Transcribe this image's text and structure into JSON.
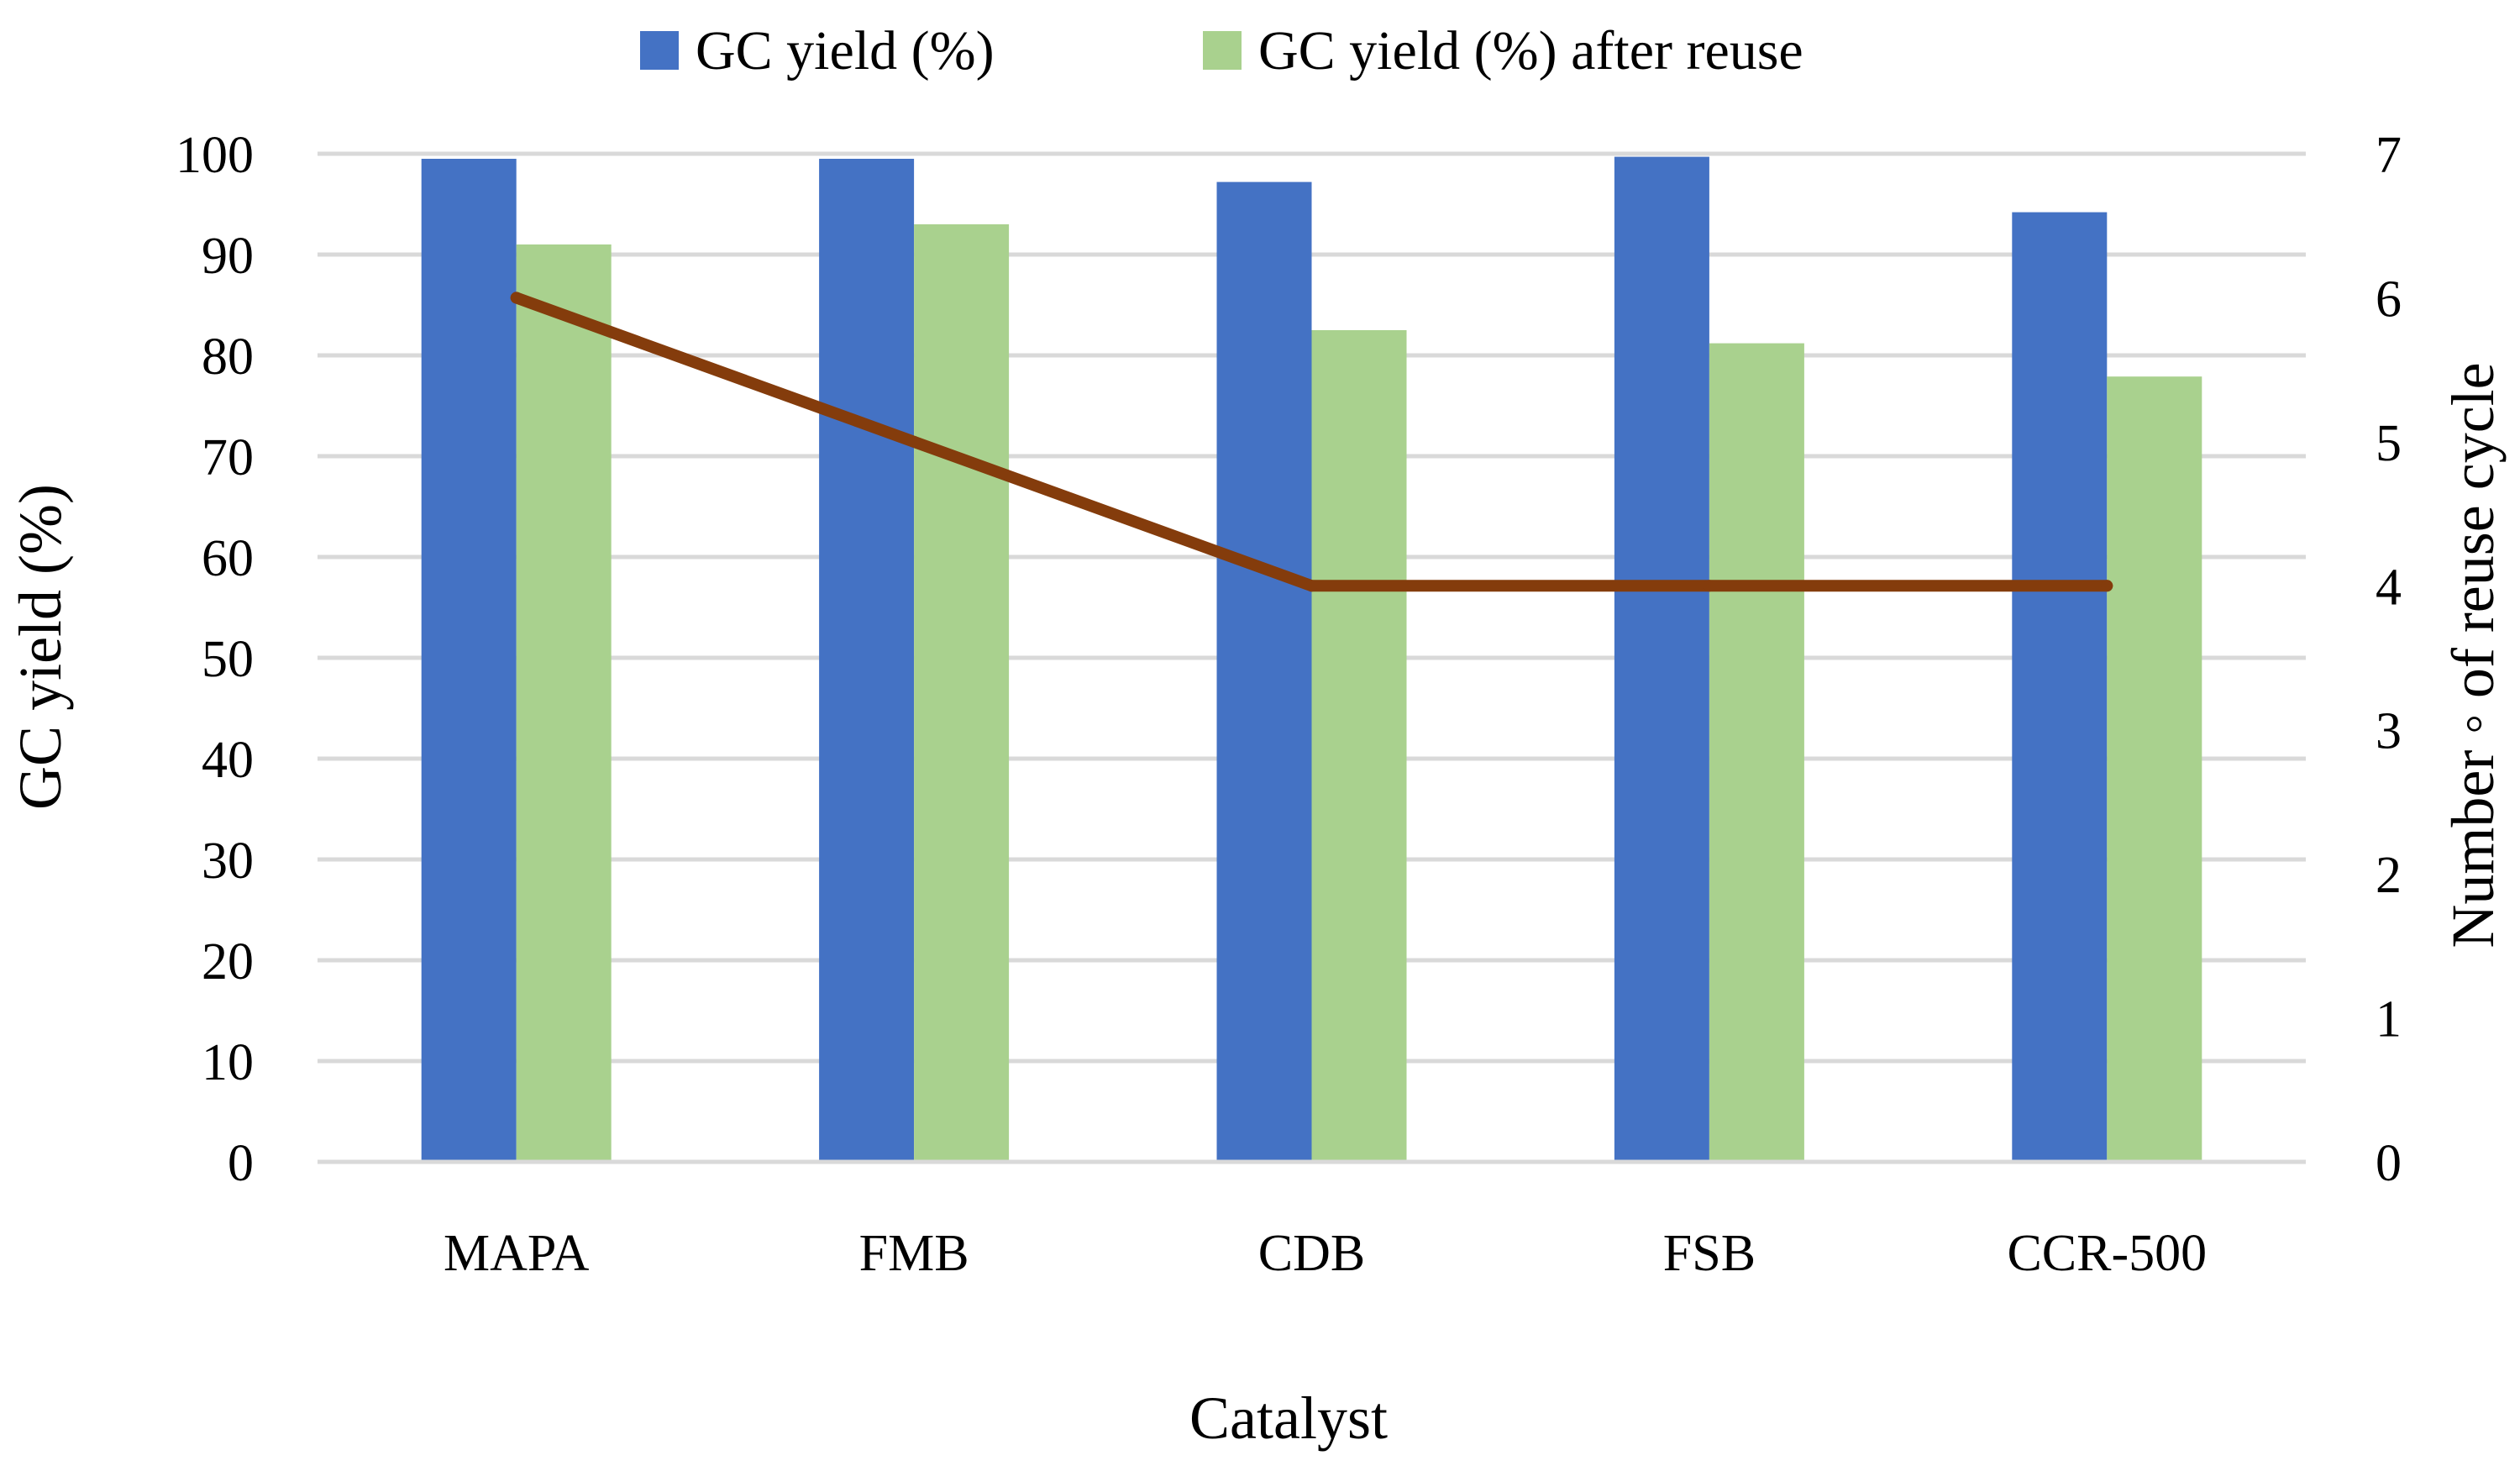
{
  "chart_data": {
    "type": "bar",
    "xlabel": "Catalyst",
    "ylabel": "GC yield (%)",
    "y2label": "Number ◦ of reuse cycle",
    "categories": [
      "MAPA",
      "FMB",
      "CDB",
      "FSB",
      "CCR-500"
    ],
    "ylim": [
      0,
      100
    ],
    "yticks": [
      0,
      10,
      20,
      30,
      40,
      50,
      60,
      70,
      80,
      90,
      100
    ],
    "y2lim": [
      0,
      7
    ],
    "y2ticks": [
      0,
      1,
      2,
      3,
      4,
      5,
      6,
      7
    ],
    "grid": true,
    "legend_position": "top",
    "series": [
      {
        "name": "GC yield (%)",
        "type": "bar",
        "axis": "left",
        "color": "#4472C4",
        "values": [
          99.5,
          99.5,
          97.2,
          99.7,
          94.2
        ]
      },
      {
        "name": "GC yield (%) after reuse",
        "type": "bar",
        "axis": "left",
        "color": "#A9D18E",
        "values": [
          91.0,
          93.0,
          82.5,
          81.2,
          77.9
        ]
      },
      {
        "name": "",
        "type": "line",
        "axis": "right",
        "color": "#843C0C",
        "values": [
          6,
          5,
          4,
          4,
          4
        ]
      }
    ]
  }
}
